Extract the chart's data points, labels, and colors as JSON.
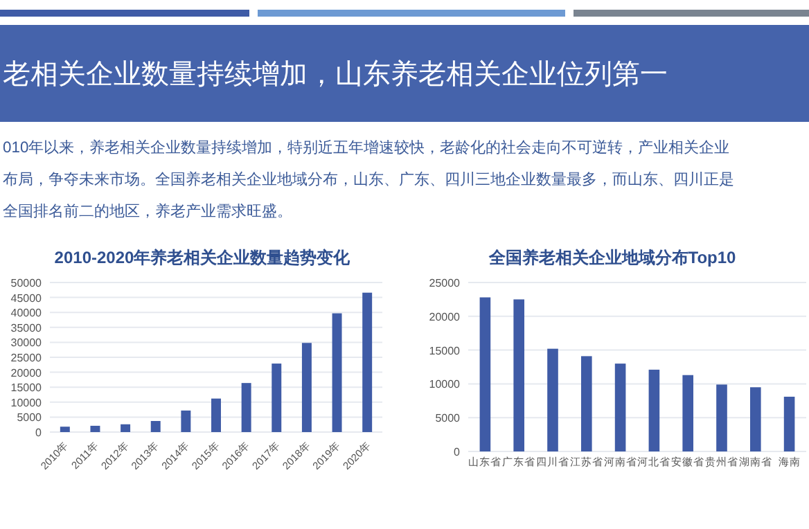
{
  "chart_data": [
    {
      "type": "other",
      "title": "老相关企业数量持续增加，山东养老相关企业位列第一",
      "annotations": [
        "010年以来，养老相关企业数量持续增加，特别近五年增速较快，老龄化的社会走向不可逆转，产业相关企业",
        "布局，争夺未来市场。全国养老相关企业地域分布，山东、广东、四川三地企业数量最多，而山东、四川正是",
        "全国排名前二的地区，养老产业需求旺盛。"
      ]
    },
    {
      "type": "bar",
      "title": "2010-2020年养老相关企业数量趋势变化",
      "categories": [
        "2010年",
        "2011年",
        "2012年",
        "2013年",
        "2014年",
        "2015年",
        "2016年",
        "2017年",
        "2018年",
        "2019年",
        "2020年"
      ],
      "values": [
        1800,
        2100,
        2600,
        3700,
        7200,
        11200,
        16400,
        22900,
        29800,
        39700,
        46600
      ],
      "color": "#3f5ba6",
      "ylim": [
        0,
        50000
      ],
      "yticks": [
        0,
        5000,
        10000,
        15000,
        20000,
        25000,
        30000,
        35000,
        40000,
        45000,
        50000
      ],
      "grid": "y"
    },
    {
      "type": "bar",
      "title": "全国养老相关企业地域分布Top10",
      "categories": [
        "山东省",
        "广东省",
        "四川省",
        "江苏省",
        "河南省",
        "河北省",
        "安徽省",
        "贵州省",
        "湖南省",
        "海南"
      ],
      "values": [
        22800,
        22500,
        15200,
        14100,
        13000,
        12100,
        11300,
        9900,
        9500,
        8100
      ],
      "color": "#3f5ba6",
      "ylim": [
        0,
        25000
      ],
      "yticks": [
        0,
        5000,
        10000,
        15000,
        20000,
        25000
      ],
      "grid": "y"
    }
  ]
}
